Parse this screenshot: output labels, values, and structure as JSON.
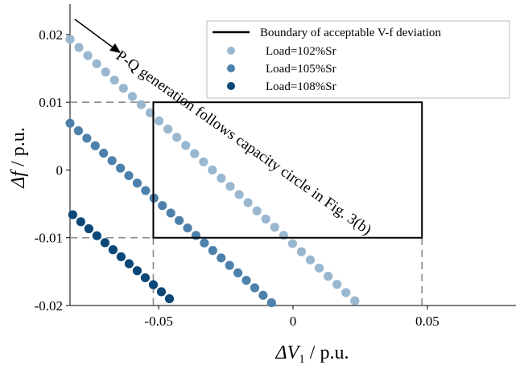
{
  "chart_data": {
    "type": "scatter",
    "x_axis": {
      "range": [
        -0.083,
        0.083
      ],
      "ticks": [
        -0.05,
        0,
        0.05
      ],
      "tick_labels": [
        "-0.05",
        "0",
        "0.05"
      ],
      "label_main": "ΔV",
      "label_sub": "1",
      "label_unit": " / p.u."
    },
    "y_axis": {
      "range": [
        -0.02,
        0.0245
      ],
      "ticks": [
        -0.02,
        -0.01,
        0,
        0.01,
        0.02
      ],
      "tick_labels": [
        "-0.02",
        "-0.01",
        "0",
        "0.01",
        "0.02"
      ],
      "label_main": "Δf",
      "label_unit": " / p.u."
    },
    "boundary": {
      "name": "Boundary of acceptable V-f deviation",
      "x_range": [
        -0.052,
        0.048
      ],
      "y_range": [
        -0.01,
        0.01
      ],
      "color": "#000000"
    },
    "series": [
      {
        "name": "Load=102%Sr",
        "color": "#9ab7d0",
        "x_start": -0.083,
        "y_start": 0.0193,
        "x_end": 0.023,
        "y_end": -0.0193,
        "count": 33
      },
      {
        "name": "Load=105%Sr",
        "color": "#4d81ac",
        "x_start": -0.083,
        "y_start": 0.0069,
        "x_end": -0.008,
        "y_end": -0.0196,
        "count": 25
      },
      {
        "name": "Load=108%Sr",
        "color": "#0b4878",
        "x_start": -0.082,
        "y_start": -0.0066,
        "x_end": -0.046,
        "y_end": -0.019,
        "count": 13
      }
    ],
    "annotation": {
      "text": "P-Q generation follows capacity circle in Fig. 3(b)"
    },
    "legend_position": "top-right",
    "grid": false
  }
}
